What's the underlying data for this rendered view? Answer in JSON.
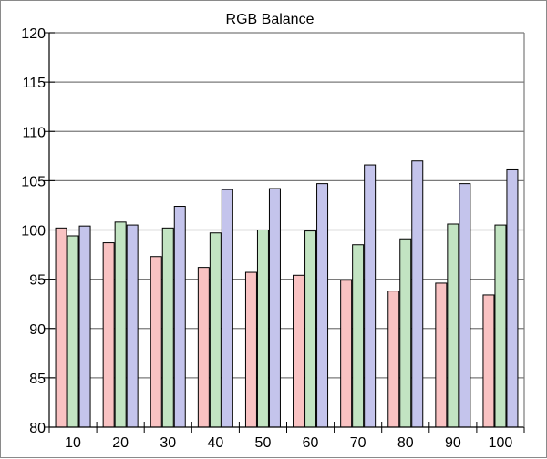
{
  "chart_data": {
    "type": "bar",
    "title": "RGB Balance",
    "xlabel": "",
    "ylabel": "",
    "categories": [
      "10",
      "20",
      "30",
      "40",
      "50",
      "60",
      "70",
      "80",
      "90",
      "100"
    ],
    "ylim": [
      80,
      120
    ],
    "yticks": [
      "80",
      "85",
      "90",
      "95",
      "100",
      "105",
      "110",
      "115",
      "120"
    ],
    "grid": true,
    "series": [
      {
        "color": "#f9c2c2",
        "values": [
          100.2,
          98.7,
          97.3,
          96.2,
          95.7,
          95.4,
          94.9,
          93.8,
          94.6,
          93.4
        ]
      },
      {
        "color": "#c2e4c2",
        "values": [
          99.4,
          100.8,
          100.2,
          99.7,
          100.0,
          99.9,
          98.5,
          99.1,
          100.6,
          100.5
        ]
      },
      {
        "color": "#c4c4ec",
        "values": [
          100.4,
          100.5,
          102.4,
          104.1,
          104.2,
          104.7,
          106.6,
          107.0,
          104.7,
          106.1
        ]
      }
    ]
  }
}
